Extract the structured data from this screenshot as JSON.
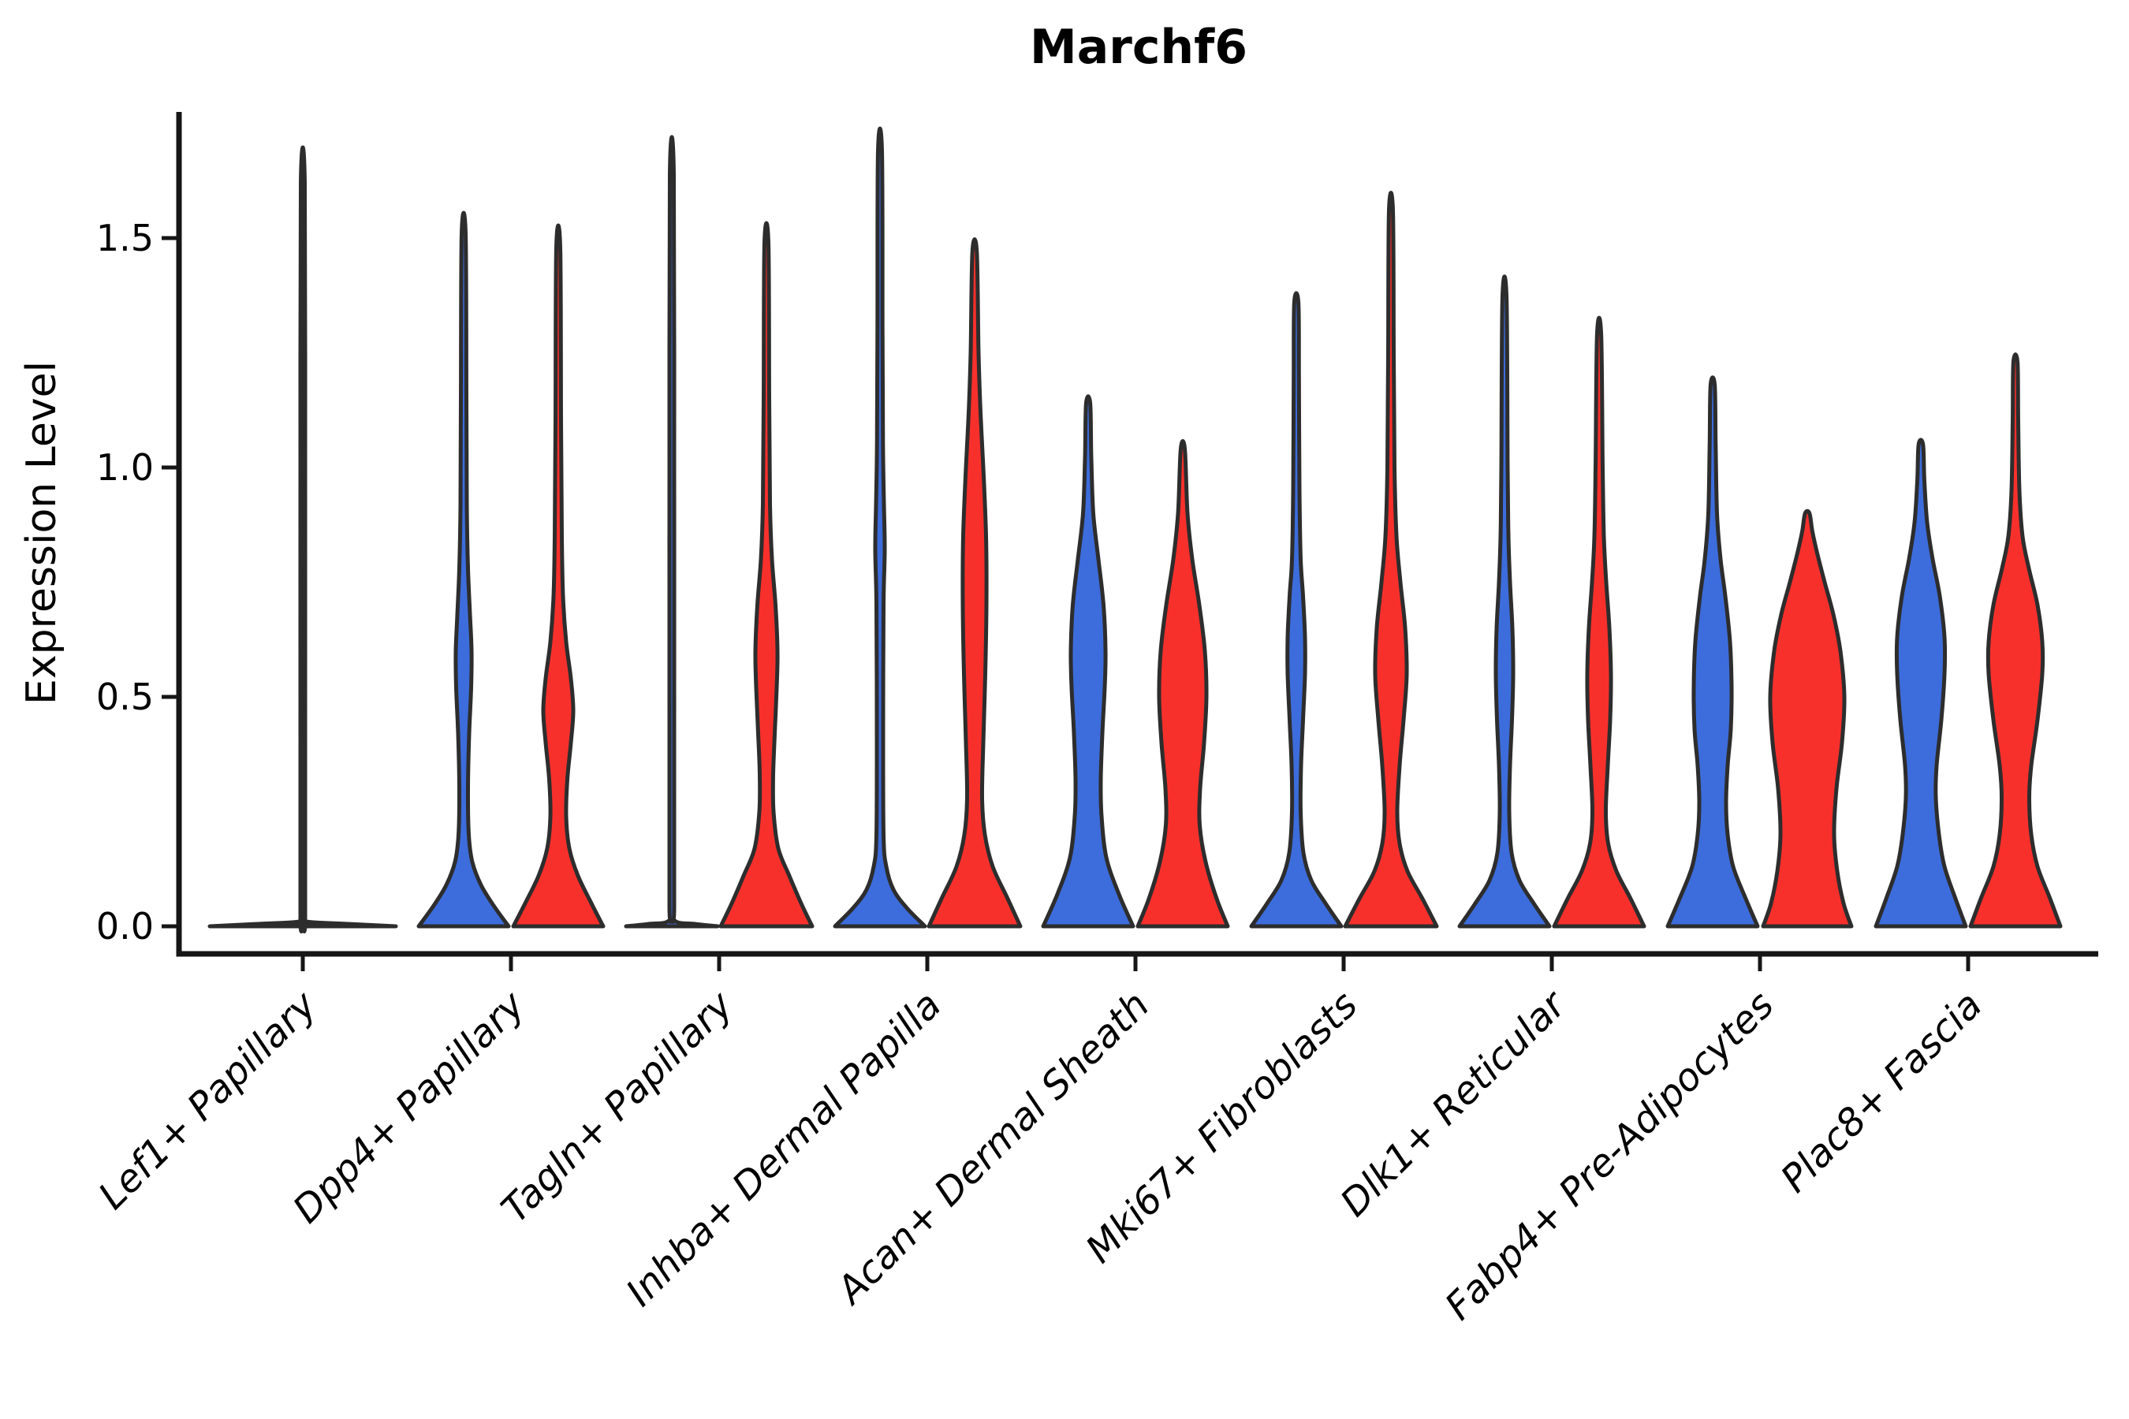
{
  "title": "Marchf6",
  "ylabel": "Expression Level",
  "colors": {
    "blue": "#3D6DDC",
    "red": "#F8302C",
    "outline": "#2D2D2D",
    "axis": "#161616",
    "background": "#FFFFFF"
  },
  "chart_data": {
    "type": "violin",
    "title": "Marchf6",
    "ylabel": "Expression Level",
    "xlabel": "",
    "ylim": [
      0,
      1.775
    ],
    "yticks": [
      "0.0",
      "0.5",
      "1.0",
      "1.5"
    ],
    "ytick_values": [
      0.0,
      0.5,
      1.0,
      1.5
    ],
    "grid": false,
    "legend": "none",
    "categories": [
      "Lef1+ Papillary",
      "Dpp4+ Papillary",
      "Tagln+ Papillary",
      "Inhba+ Dermal Papilla",
      "Acan+ Dermal Sheath",
      "Mki67+ Fibroblasts",
      "Dlk1+ Reticular",
      "Fabp4+ Pre-Adipocytes",
      "Plac8+ Fascia"
    ],
    "series_note": "each category shows a blue (left) and red (right) half-pair of violins; category 1 has a single flat full-width violin; category 3 blue violin is flat",
    "violins": [
      {
        "category_index": 0,
        "side": "single",
        "color_key": "outline",
        "max": 1.62,
        "profile": [
          [
            0,
            118
          ],
          [
            0.005,
            60
          ],
          [
            0.01,
            6
          ],
          [
            0.02,
            3
          ],
          [
            0.4,
            3
          ],
          [
            1.0,
            3
          ],
          [
            1.62,
            2.5
          ]
        ]
      },
      {
        "category_index": 1,
        "side": "blue",
        "color_key": "blue",
        "max": 1.51,
        "profile": [
          [
            0,
            57
          ],
          [
            0.045,
            38
          ],
          [
            0.09,
            22
          ],
          [
            0.14,
            11
          ],
          [
            0.2,
            6.5
          ],
          [
            0.3,
            5.5
          ],
          [
            0.42,
            7
          ],
          [
            0.52,
            9.5
          ],
          [
            0.6,
            10
          ],
          [
            0.68,
            8
          ],
          [
            0.78,
            5.5
          ],
          [
            0.92,
            4
          ],
          [
            1.15,
            3.5
          ],
          [
            1.51,
            2.5
          ]
        ]
      },
      {
        "category_index": 1,
        "side": "red",
        "color_key": "red",
        "max": 1.48,
        "profile": [
          [
            0,
            57
          ],
          [
            0.05,
            42
          ],
          [
            0.11,
            25
          ],
          [
            0.17,
            14
          ],
          [
            0.24,
            10
          ],
          [
            0.32,
            11.5
          ],
          [
            0.4,
            16
          ],
          [
            0.47,
            19
          ],
          [
            0.54,
            16
          ],
          [
            0.62,
            10
          ],
          [
            0.72,
            6
          ],
          [
            0.85,
            4.5
          ],
          [
            1.1,
            3.5
          ],
          [
            1.48,
            2.5
          ]
        ]
      },
      {
        "category_index": 2,
        "side": "blue",
        "color_key": "blue",
        "max": 1.64,
        "profile": [
          [
            0,
            58
          ],
          [
            0.005,
            30
          ],
          [
            0.012,
            4
          ],
          [
            0.05,
            3
          ],
          [
            0.4,
            3
          ],
          [
            1.0,
            3
          ],
          [
            1.64,
            2.5
          ]
        ]
      },
      {
        "category_index": 2,
        "side": "red",
        "color_key": "red",
        "max": 1.49,
        "profile": [
          [
            0,
            58
          ],
          [
            0.05,
            44
          ],
          [
            0.11,
            29
          ],
          [
            0.17,
            15
          ],
          [
            0.25,
            9
          ],
          [
            0.33,
            8.5
          ],
          [
            0.42,
            10.5
          ],
          [
            0.52,
            13
          ],
          [
            0.6,
            14
          ],
          [
            0.7,
            11.5
          ],
          [
            0.8,
            7
          ],
          [
            0.92,
            4.5
          ],
          [
            1.15,
            3.5
          ],
          [
            1.49,
            2.5
          ]
        ]
      },
      {
        "category_index": 3,
        "side": "blue",
        "color_key": "blue",
        "max": 1.69,
        "profile": [
          [
            0,
            57
          ],
          [
            0.04,
            34
          ],
          [
            0.08,
            17
          ],
          [
            0.13,
            8
          ],
          [
            0.2,
            4.5
          ],
          [
            0.45,
            4
          ],
          [
            0.7,
            4.5
          ],
          [
            0.82,
            6
          ],
          [
            0.92,
            5
          ],
          [
            1.05,
            3.8
          ],
          [
            1.3,
            3.2
          ],
          [
            1.69,
            2.5
          ]
        ]
      },
      {
        "category_index": 3,
        "side": "red",
        "color_key": "red",
        "max": 1.47,
        "profile": [
          [
            0,
            58
          ],
          [
            0.06,
            42
          ],
          [
            0.13,
            23
          ],
          [
            0.2,
            13
          ],
          [
            0.28,
            9.5
          ],
          [
            0.4,
            11
          ],
          [
            0.55,
            13.5
          ],
          [
            0.7,
            15
          ],
          [
            0.85,
            14.5
          ],
          [
            1.0,
            11
          ],
          [
            1.12,
            7.5
          ],
          [
            1.25,
            5
          ],
          [
            1.47,
            2.8
          ]
        ]
      },
      {
        "category_index": 4,
        "side": "blue",
        "color_key": "blue",
        "max": 1.14,
        "profile": [
          [
            0,
            57
          ],
          [
            0.07,
            39
          ],
          [
            0.15,
            23
          ],
          [
            0.24,
            17
          ],
          [
            0.32,
            16
          ],
          [
            0.42,
            18
          ],
          [
            0.52,
            21
          ],
          [
            0.6,
            22
          ],
          [
            0.7,
            19.5
          ],
          [
            0.8,
            13
          ],
          [
            0.9,
            6.5
          ],
          [
            1.02,
            4
          ],
          [
            1.14,
            2.6
          ]
        ]
      },
      {
        "category_index": 4,
        "side": "red",
        "color_key": "red",
        "max": 1.04,
        "profile": [
          [
            0,
            57
          ],
          [
            0.06,
            43
          ],
          [
            0.14,
            29
          ],
          [
            0.22,
            21.5
          ],
          [
            0.3,
            22
          ],
          [
            0.4,
            27
          ],
          [
            0.5,
            30
          ],
          [
            0.6,
            28
          ],
          [
            0.7,
            21
          ],
          [
            0.8,
            12
          ],
          [
            0.9,
            6
          ],
          [
            1.04,
            2.6
          ]
        ]
      },
      {
        "category_index": 5,
        "side": "blue",
        "color_key": "blue",
        "max": 1.36,
        "profile": [
          [
            0,
            57
          ],
          [
            0.05,
            37
          ],
          [
            0.1,
            19
          ],
          [
            0.16,
            9
          ],
          [
            0.25,
            5.5
          ],
          [
            0.35,
            6
          ],
          [
            0.45,
            8.5
          ],
          [
            0.55,
            11
          ],
          [
            0.63,
            11
          ],
          [
            0.72,
            8.5
          ],
          [
            0.8,
            5.5
          ],
          [
            0.95,
            4
          ],
          [
            1.2,
            3.3
          ],
          [
            1.36,
            2.6
          ]
        ]
      },
      {
        "category_index": 5,
        "side": "red",
        "color_key": "red",
        "max": 1.56,
        "profile": [
          [
            0,
            58
          ],
          [
            0.06,
            40
          ],
          [
            0.12,
            21
          ],
          [
            0.18,
            11
          ],
          [
            0.25,
            8
          ],
          [
            0.35,
            11
          ],
          [
            0.45,
            16
          ],
          [
            0.55,
            20
          ],
          [
            0.65,
            18
          ],
          [
            0.75,
            12
          ],
          [
            0.85,
            7
          ],
          [
            1.0,
            4.5
          ],
          [
            1.25,
            3.5
          ],
          [
            1.56,
            2.5
          ]
        ]
      },
      {
        "category_index": 6,
        "side": "blue",
        "color_key": "blue",
        "max": 1.37,
        "profile": [
          [
            0,
            57
          ],
          [
            0.05,
            37
          ],
          [
            0.1,
            19
          ],
          [
            0.16,
            9
          ],
          [
            0.25,
            6
          ],
          [
            0.35,
            7
          ],
          [
            0.45,
            9.5
          ],
          [
            0.55,
            11
          ],
          [
            0.65,
            10
          ],
          [
            0.75,
            7
          ],
          [
            0.85,
            5
          ],
          [
            1.0,
            4
          ],
          [
            1.37,
            2.6
          ]
        ]
      },
      {
        "category_index": 6,
        "side": "red",
        "color_key": "red",
        "max": 1.29,
        "profile": [
          [
            0,
            57
          ],
          [
            0.06,
            40
          ],
          [
            0.12,
            22
          ],
          [
            0.18,
            11.5
          ],
          [
            0.25,
            8.5
          ],
          [
            0.35,
            11
          ],
          [
            0.45,
            14
          ],
          [
            0.55,
            15
          ],
          [
            0.65,
            13
          ],
          [
            0.75,
            9
          ],
          [
            0.85,
            6
          ],
          [
            1.0,
            4.5
          ],
          [
            1.29,
            2.6
          ]
        ]
      },
      {
        "category_index": 7,
        "side": "blue",
        "color_key": "blue",
        "max": 1.18,
        "profile": [
          [
            0,
            57
          ],
          [
            0.06,
            42
          ],
          [
            0.13,
            26
          ],
          [
            0.2,
            19
          ],
          [
            0.27,
            17
          ],
          [
            0.35,
            19
          ],
          [
            0.43,
            23
          ],
          [
            0.52,
            24
          ],
          [
            0.62,
            22
          ],
          [
            0.72,
            16
          ],
          [
            0.8,
            10
          ],
          [
            0.9,
            5.5
          ],
          [
            1.05,
            3.8
          ],
          [
            1.18,
            2.6
          ]
        ]
      },
      {
        "category_index": 7,
        "side": "red",
        "color_key": "red",
        "max": 0.9,
        "profile": [
          [
            0,
            56
          ],
          [
            0.05,
            46
          ],
          [
            0.12,
            38
          ],
          [
            0.2,
            34
          ],
          [
            0.3,
            37
          ],
          [
            0.4,
            44
          ],
          [
            0.5,
            47
          ],
          [
            0.6,
            42
          ],
          [
            0.68,
            33
          ],
          [
            0.75,
            22
          ],
          [
            0.81,
            13
          ],
          [
            0.86,
            6.5
          ],
          [
            0.9,
            2.8
          ]
        ]
      },
      {
        "category_index": 8,
        "side": "blue",
        "color_key": "blue",
        "max": 1.05,
        "profile": [
          [
            0,
            57
          ],
          [
            0.06,
            44
          ],
          [
            0.13,
            30
          ],
          [
            0.2,
            23
          ],
          [
            0.28,
            19
          ],
          [
            0.35,
            20
          ],
          [
            0.45,
            26
          ],
          [
            0.55,
            30
          ],
          [
            0.63,
            30
          ],
          [
            0.72,
            24
          ],
          [
            0.8,
            15
          ],
          [
            0.88,
            8
          ],
          [
            0.97,
            4.5
          ],
          [
            1.05,
            2.8
          ]
        ]
      },
      {
        "category_index": 8,
        "side": "red",
        "color_key": "red",
        "max": 1.23,
        "profile": [
          [
            0,
            57
          ],
          [
            0.06,
            44
          ],
          [
            0.13,
            28
          ],
          [
            0.2,
            20
          ],
          [
            0.28,
            17.5
          ],
          [
            0.35,
            20
          ],
          [
            0.45,
            28
          ],
          [
            0.55,
            34
          ],
          [
            0.62,
            34
          ],
          [
            0.7,
            28
          ],
          [
            0.78,
            17
          ],
          [
            0.85,
            9
          ],
          [
            0.95,
            5
          ],
          [
            1.1,
            3.5
          ],
          [
            1.23,
            2.6
          ]
        ]
      }
    ]
  }
}
